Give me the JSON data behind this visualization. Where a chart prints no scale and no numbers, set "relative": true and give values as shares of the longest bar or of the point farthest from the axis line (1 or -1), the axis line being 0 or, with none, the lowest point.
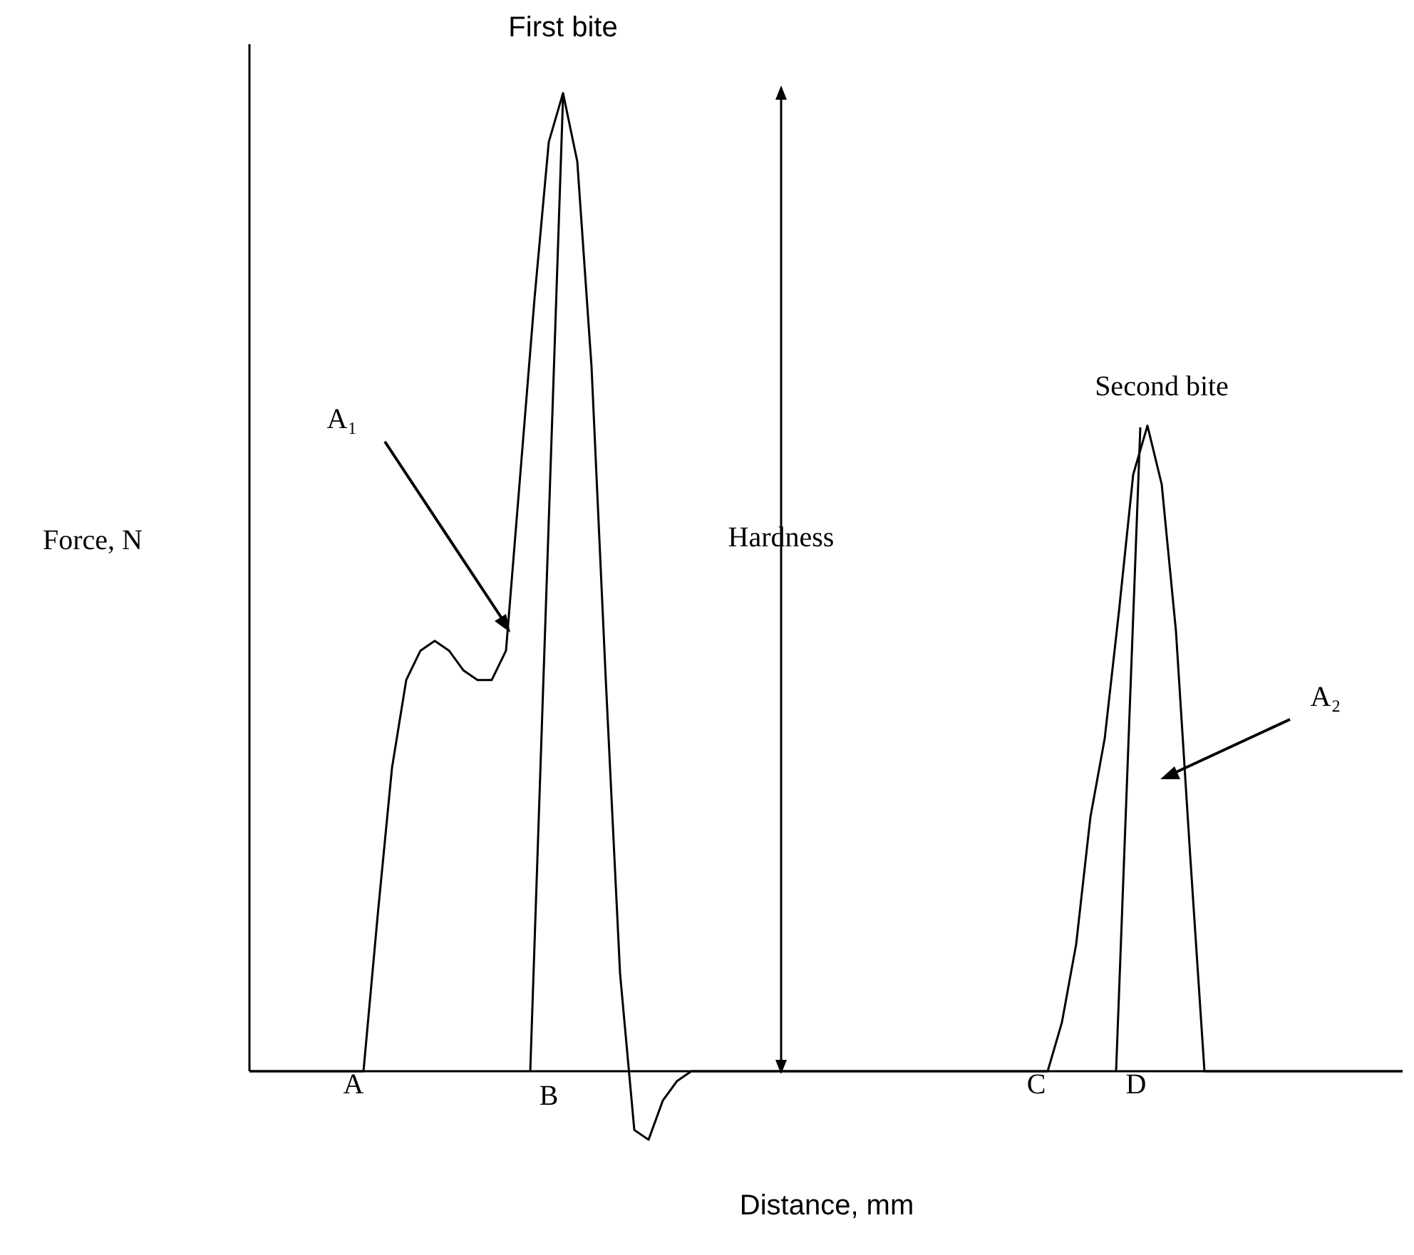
{
  "chart_data": {
    "type": "line",
    "title": "First bite",
    "xlabel": "Distance, mm",
    "ylabel": "Force, N",
    "relative": true,
    "categories": [
      null,
      null,
      null,
      null,
      null,
      null,
      null,
      null,
      null,
      null,
      null,
      null,
      null,
      null,
      null,
      null,
      null,
      null,
      null,
      null,
      null,
      null,
      null,
      null,
      null,
      null,
      null,
      null,
      null,
      null,
      null,
      null,
      null,
      null,
      null,
      null,
      null,
      null,
      null,
      null,
      null,
      null,
      null,
      null,
      null,
      null,
      null,
      null,
      null,
      null,
      null,
      null,
      null,
      null,
      null,
      null,
      null,
      null,
      null,
      null,
      null,
      null,
      null,
      null,
      null,
      null,
      null,
      null,
      null,
      null,
      null,
      null,
      null,
      null,
      null,
      null,
      null,
      null,
      null,
      null,
      null,
      null
    ],
    "series": [
      {
        "color": "#000000",
        "values": [
          0,
          0,
          0,
          0,
          0,
          0,
          0,
          0,
          0,
          0.16,
          0.31,
          0.4,
          0.43,
          0.44,
          0.43,
          0.41,
          0.4,
          0.4,
          0.43,
          0.61,
          0.79,
          0.95,
          1,
          0.93,
          0.72,
          0.4,
          0.1,
          -0.06,
          -0.07,
          -0.03,
          -0.01,
          0,
          0,
          0,
          0,
          0,
          0,
          0,
          0,
          0,
          0,
          0,
          0,
          0,
          0,
          0,
          0,
          0,
          0,
          0,
          0,
          0,
          0,
          0,
          0,
          0,
          0,
          0.05,
          0.13,
          0.26,
          0.34,
          0.47,
          0.61,
          0.66,
          0.6,
          0.45,
          0.22,
          0,
          0,
          0,
          0,
          0,
          0,
          0,
          0,
          0,
          0,
          0,
          0,
          0,
          0,
          0
        ]
      }
    ],
    "annotations": [
      "A₁",
      "A₂",
      "Hardness",
      "Second bite",
      "A",
      "B",
      "C",
      "D"
    ],
    "grid": false,
    "legend": false,
    "marker": "none",
    "line_style": "solid"
  }
}
